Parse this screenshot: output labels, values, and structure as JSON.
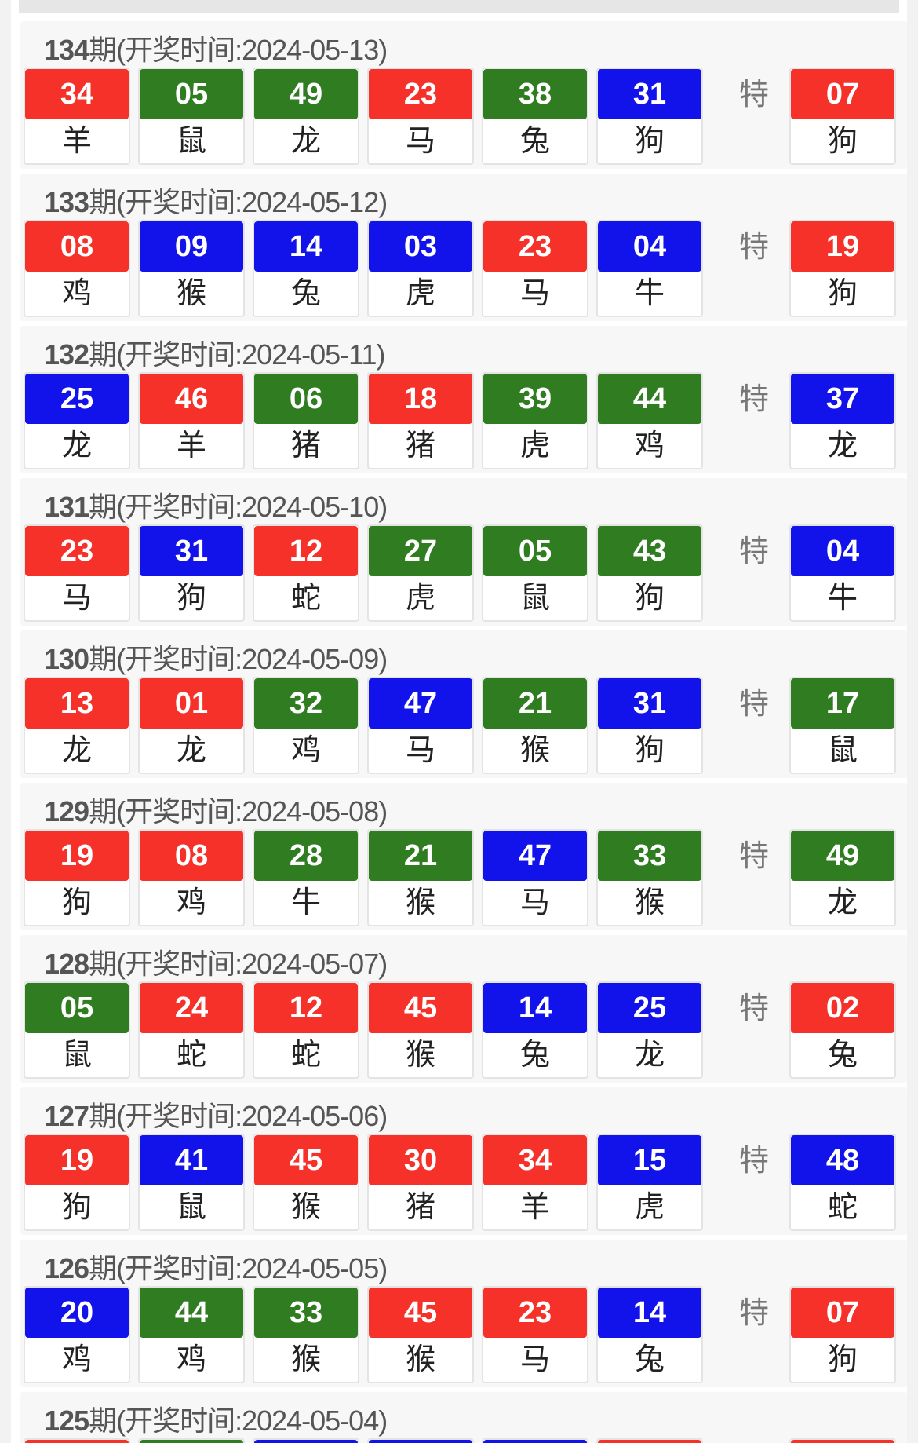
{
  "colors": {
    "red": "#f5312a",
    "green": "#2f7d20",
    "blue": "#1212ea"
  },
  "special_label": "特",
  "draws": [
    {
      "issue": "134",
      "title": "期(开奖时间:2024-05-13)",
      "balls": [
        [
          "34",
          "羊",
          "red"
        ],
        [
          "05",
          "鼠",
          "green"
        ],
        [
          "49",
          "龙",
          "green"
        ],
        [
          "23",
          "马",
          "red"
        ],
        [
          "38",
          "兔",
          "green"
        ],
        [
          "31",
          "狗",
          "blue"
        ]
      ],
      "special": [
        "07",
        "狗",
        "red"
      ]
    },
    {
      "issue": "133",
      "title": "期(开奖时间:2024-05-12)",
      "balls": [
        [
          "08",
          "鸡",
          "red"
        ],
        [
          "09",
          "猴",
          "blue"
        ],
        [
          "14",
          "兔",
          "blue"
        ],
        [
          "03",
          "虎",
          "blue"
        ],
        [
          "23",
          "马",
          "red"
        ],
        [
          "04",
          "牛",
          "blue"
        ]
      ],
      "special": [
        "19",
        "狗",
        "red"
      ]
    },
    {
      "issue": "132",
      "title": "期(开奖时间:2024-05-11)",
      "balls": [
        [
          "25",
          "龙",
          "blue"
        ],
        [
          "46",
          "羊",
          "red"
        ],
        [
          "06",
          "猪",
          "green"
        ],
        [
          "18",
          "猪",
          "red"
        ],
        [
          "39",
          "虎",
          "green"
        ],
        [
          "44",
          "鸡",
          "green"
        ]
      ],
      "special": [
        "37",
        "龙",
        "blue"
      ]
    },
    {
      "issue": "131",
      "title": "期(开奖时间:2024-05-10)",
      "balls": [
        [
          "23",
          "马",
          "red"
        ],
        [
          "31",
          "狗",
          "blue"
        ],
        [
          "12",
          "蛇",
          "red"
        ],
        [
          "27",
          "虎",
          "green"
        ],
        [
          "05",
          "鼠",
          "green"
        ],
        [
          "43",
          "狗",
          "green"
        ]
      ],
      "special": [
        "04",
        "牛",
        "blue"
      ]
    },
    {
      "issue": "130",
      "title": "期(开奖时间:2024-05-09)",
      "balls": [
        [
          "13",
          "龙",
          "red"
        ],
        [
          "01",
          "龙",
          "red"
        ],
        [
          "32",
          "鸡",
          "green"
        ],
        [
          "47",
          "马",
          "blue"
        ],
        [
          "21",
          "猴",
          "green"
        ],
        [
          "31",
          "狗",
          "blue"
        ]
      ],
      "special": [
        "17",
        "鼠",
        "green"
      ]
    },
    {
      "issue": "129",
      "title": "期(开奖时间:2024-05-08)",
      "balls": [
        [
          "19",
          "狗",
          "red"
        ],
        [
          "08",
          "鸡",
          "red"
        ],
        [
          "28",
          "牛",
          "green"
        ],
        [
          "21",
          "猴",
          "green"
        ],
        [
          "47",
          "马",
          "blue"
        ],
        [
          "33",
          "猴",
          "green"
        ]
      ],
      "special": [
        "49",
        "龙",
        "green"
      ]
    },
    {
      "issue": "128",
      "title": "期(开奖时间:2024-05-07)",
      "balls": [
        [
          "05",
          "鼠",
          "green"
        ],
        [
          "24",
          "蛇",
          "red"
        ],
        [
          "12",
          "蛇",
          "red"
        ],
        [
          "45",
          "猴",
          "red"
        ],
        [
          "14",
          "兔",
          "blue"
        ],
        [
          "25",
          "龙",
          "blue"
        ]
      ],
      "special": [
        "02",
        "兔",
        "red"
      ]
    },
    {
      "issue": "127",
      "title": "期(开奖时间:2024-05-06)",
      "balls": [
        [
          "19",
          "狗",
          "red"
        ],
        [
          "41",
          "鼠",
          "blue"
        ],
        [
          "45",
          "猴",
          "red"
        ],
        [
          "30",
          "猪",
          "red"
        ],
        [
          "34",
          "羊",
          "red"
        ],
        [
          "15",
          "虎",
          "blue"
        ]
      ],
      "special": [
        "48",
        "蛇",
        "blue"
      ]
    },
    {
      "issue": "126",
      "title": "期(开奖时间:2024-05-05)",
      "balls": [
        [
          "20",
          "鸡",
          "blue"
        ],
        [
          "44",
          "鸡",
          "green"
        ],
        [
          "33",
          "猴",
          "green"
        ],
        [
          "45",
          "猴",
          "red"
        ],
        [
          "23",
          "马",
          "red"
        ],
        [
          "14",
          "兔",
          "blue"
        ]
      ],
      "special": [
        "07",
        "狗",
        "red"
      ]
    },
    {
      "issue": "125",
      "title": "期(开奖时间:2024-05-04)",
      "balls": [
        [
          "",
          "",
          "red"
        ],
        [
          "",
          "",
          "green"
        ],
        [
          "",
          "",
          "blue"
        ],
        [
          "",
          "",
          "blue"
        ],
        [
          "",
          "",
          "blue"
        ],
        [
          "",
          "",
          "red"
        ]
      ],
      "special": [
        "",
        "",
        "red"
      ]
    }
  ]
}
